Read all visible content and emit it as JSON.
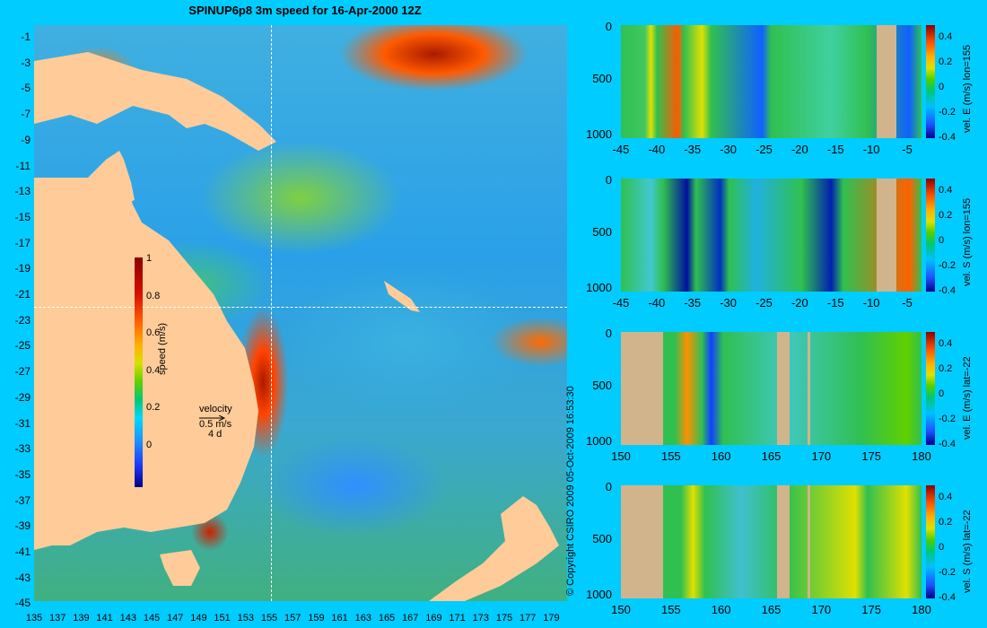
{
  "title": "SPINUP6p8 3m speed for 16-Apr-2000 12Z",
  "colors": {
    "background": "#00ccff",
    "land": "#ffcc99",
    "section_land": "#d2b48c"
  },
  "map": {
    "y_ticks": [
      "-1",
      "-3",
      "-5",
      "-7",
      "-9",
      "-11",
      "-13",
      "-15",
      "-17",
      "-19",
      "-21",
      "-23",
      "-25",
      "-27",
      "-29",
      "-31",
      "-33",
      "-35",
      "-37",
      "-39",
      "-41",
      "-43",
      "-45"
    ],
    "x_ticks": [
      "135",
      "137",
      "139",
      "141",
      "143",
      "145",
      "147",
      "149",
      "151",
      "153",
      "155",
      "157",
      "159",
      "161",
      "163",
      "165",
      "167",
      "169",
      "171",
      "173",
      "175",
      "177",
      "179"
    ],
    "section_lon": 155,
    "section_lat": -22
  },
  "colorbar": {
    "ticks": [
      "1",
      "0.8",
      "0.6",
      "0.4",
      "0.2",
      "0"
    ],
    "label": "speed (m/s)"
  },
  "velocity_legend": {
    "label": "velocity",
    "value": "0.5 m/s",
    "days": "4 d"
  },
  "copyright": "© Copyright CSIRO 2009   05-Oct-2009 16:53:30",
  "panels": [
    {
      "y_ticks": [
        "0",
        "500",
        "1000"
      ],
      "x_ticks": [
        "-45",
        "-40",
        "-35",
        "-30",
        "-25",
        "-20",
        "-15",
        "-10",
        "-5"
      ],
      "cbar_ticks": [
        "0.4",
        "0.2",
        "0",
        "-0.2",
        "-0.4"
      ],
      "label": "vel. E (m/s) lon=155"
    },
    {
      "y_ticks": [
        "0",
        "500",
        "1000"
      ],
      "x_ticks": [
        "-45",
        "-40",
        "-35",
        "-30",
        "-25",
        "-20",
        "-15",
        "-10",
        "-5"
      ],
      "cbar_ticks": [
        "0.4",
        "0.2",
        "0",
        "-0.2",
        "-0.4"
      ],
      "label": "vel. S (m/s) lon=155"
    },
    {
      "y_ticks": [
        "0",
        "500",
        "1000"
      ],
      "x_ticks": [
        "150",
        "155",
        "160",
        "165",
        "170",
        "175",
        "180"
      ],
      "cbar_ticks": [
        "0.4",
        "0.2",
        "0",
        "-0.2",
        "-0.4"
      ],
      "label": "vel. E (m/s) lat=-22"
    },
    {
      "y_ticks": [
        "0",
        "500",
        "1000"
      ],
      "x_ticks": [
        "150",
        "155",
        "160",
        "165",
        "170",
        "175",
        "180"
      ],
      "cbar_ticks": [
        "0.4",
        "0.2",
        "0",
        "-0.2",
        "-0.4"
      ],
      "label": "vel. S (m/s) lat=-22"
    }
  ]
}
